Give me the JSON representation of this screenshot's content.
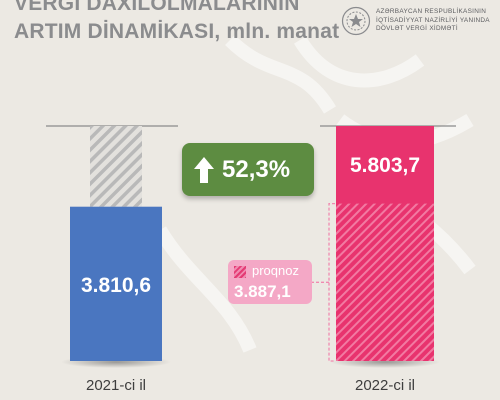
{
  "title": {
    "line1": "VERGİ DAXİLOLMALARININ",
    "line2": "ARTIM DİNAMİKASI, mln. manat"
  },
  "organization": {
    "line1": "AZƏRBAYCAN RESPUBLİKASININ",
    "line2": "İQTİSADİYYAT NAZİRLİYİ YANINDA",
    "line3": "DÖVLƏT VERGİ XİDMƏTİ",
    "emblem_icon": "state-tax-service-emblem-icon"
  },
  "growth": {
    "label": "52,3%",
    "icon": "arrow-up-icon",
    "color": "#5d8c41"
  },
  "forecast": {
    "label": "proqnoz",
    "value_label": "3.887,1",
    "color": "#f4a8c6"
  },
  "chart_data": {
    "type": "bar",
    "categories": [
      "2021-ci il",
      "2022-ci il"
    ],
    "values": [
      3810.6,
      5803.7
    ],
    "value_labels": [
      "3.810,6",
      "5.803,7"
    ],
    "forecast_value": 3887.1,
    "forecast_value_label": "3.887,1",
    "ylim": [
      0,
      5803.7
    ],
    "colors": [
      "#4a76c0",
      "#e8336e"
    ],
    "grid": false,
    "legend": "none"
  },
  "colors": {
    "background": "#ece9e3",
    "title": "#8b8c8e",
    "blue_bar": "#4a76c0",
    "pink_bar": "#e8336e"
  }
}
